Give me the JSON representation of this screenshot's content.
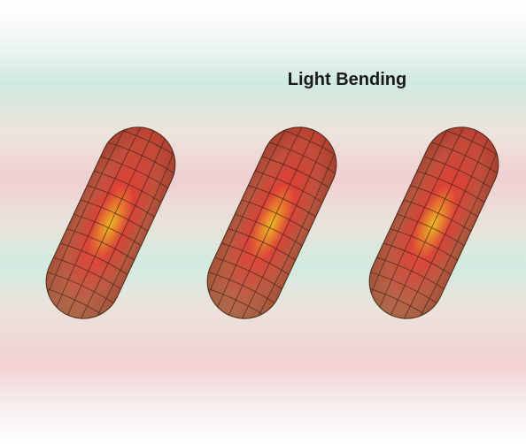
{
  "title": "Light Bending"
}
